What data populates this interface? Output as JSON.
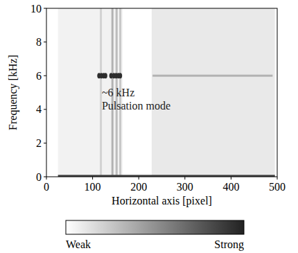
{
  "chart_data": {
    "type": "spectrogram",
    "x_label": "Horizontal axis [pixel]",
    "y_label": "Frequency [kHz]",
    "xlim": [
      0,
      500
    ],
    "ylim": [
      0,
      10
    ],
    "xticks": [
      0,
      100,
      200,
      300,
      400,
      500
    ],
    "yticks": [
      0,
      2,
      4,
      6,
      8,
      10
    ],
    "annotations": [
      "~6 kHz",
      "Pulsation mode"
    ],
    "noise_regions": [
      {
        "x": [
          25,
          165
        ],
        "level": 0.06
      },
      {
        "x": [
          228,
          495
        ],
        "level": 0.1
      }
    ],
    "vertical_bands": {
      "x": [
        118,
        143,
        152,
        160
      ],
      "level": [
        0.2,
        0.35,
        0.3,
        0.25
      ]
    },
    "horizontal_lines": [
      {
        "x": [
          230,
          490
        ],
        "y": 6,
        "level": 0.35
      },
      {
        "x": [
          25,
          495
        ],
        "y": 0.05,
        "level": 0.85
      }
    ],
    "peaks": {
      "x": [
        114,
        119,
        124,
        128,
        140,
        146,
        151,
        156,
        160
      ],
      "y": 6,
      "level": 0.95
    },
    "colorbar": {
      "range": [
        0,
        1
      ],
      "ticks": [
        {
          "value": 0,
          "label": "Weak"
        },
        {
          "value": 1,
          "label": "Strong"
        }
      ]
    }
  }
}
